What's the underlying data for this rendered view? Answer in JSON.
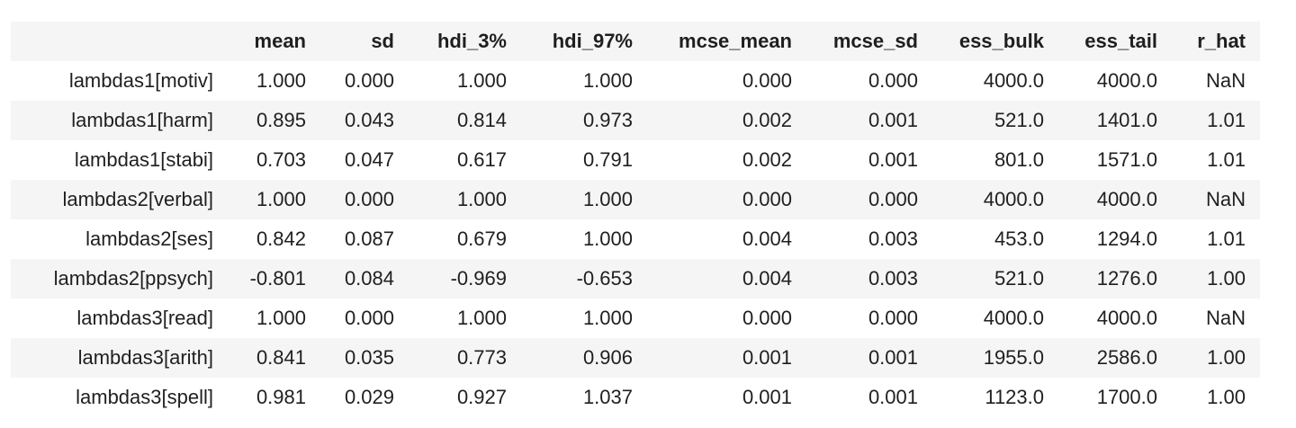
{
  "table": {
    "index_header": "",
    "columns": [
      "mean",
      "sd",
      "hdi_3%",
      "hdi_97%",
      "mcse_mean",
      "mcse_sd",
      "ess_bulk",
      "ess_tail",
      "r_hat"
    ],
    "rows": [
      {
        "label": "lambdas1[motiv]",
        "values": [
          "1.000",
          "0.000",
          "1.000",
          "1.000",
          "0.000",
          "0.000",
          "4000.0",
          "4000.0",
          "NaN"
        ]
      },
      {
        "label": "lambdas1[harm]",
        "values": [
          "0.895",
          "0.043",
          "0.814",
          "0.973",
          "0.002",
          "0.001",
          "521.0",
          "1401.0",
          "1.01"
        ]
      },
      {
        "label": "lambdas1[stabi]",
        "values": [
          "0.703",
          "0.047",
          "0.617",
          "0.791",
          "0.002",
          "0.001",
          "801.0",
          "1571.0",
          "1.01"
        ]
      },
      {
        "label": "lambdas2[verbal]",
        "values": [
          "1.000",
          "0.000",
          "1.000",
          "1.000",
          "0.000",
          "0.000",
          "4000.0",
          "4000.0",
          "NaN"
        ]
      },
      {
        "label": "lambdas2[ses]",
        "values": [
          "0.842",
          "0.087",
          "0.679",
          "1.000",
          "0.004",
          "0.003",
          "453.0",
          "1294.0",
          "1.01"
        ]
      },
      {
        "label": "lambdas2[ppsych]",
        "values": [
          "-0.801",
          "0.084",
          "-0.969",
          "-0.653",
          "0.004",
          "0.003",
          "521.0",
          "1276.0",
          "1.00"
        ]
      },
      {
        "label": "lambdas3[read]",
        "values": [
          "1.000",
          "0.000",
          "1.000",
          "1.000",
          "0.000",
          "0.000",
          "4000.0",
          "4000.0",
          "NaN"
        ]
      },
      {
        "label": "lambdas3[arith]",
        "values": [
          "0.841",
          "0.035",
          "0.773",
          "0.906",
          "0.001",
          "0.001",
          "1955.0",
          "2586.0",
          "1.00"
        ]
      },
      {
        "label": "lambdas3[spell]",
        "values": [
          "0.981",
          "0.029",
          "0.927",
          "1.037",
          "0.001",
          "0.001",
          "1123.0",
          "1700.0",
          "1.00"
        ]
      }
    ]
  }
}
